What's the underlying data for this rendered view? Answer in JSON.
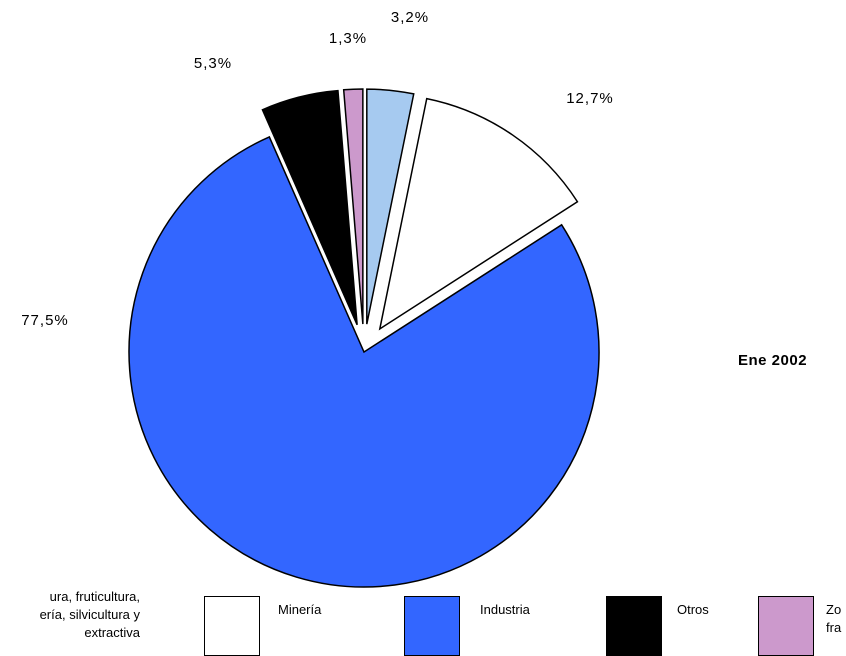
{
  "chart_data": {
    "type": "pie",
    "period": "Ene 2002",
    "slices": [
      {
        "name": "Agricultura, fruticultura, ganadería, silvicultura y pesca extractiva",
        "value": 3.2,
        "label": "3,2%",
        "color": "#a6caf0"
      },
      {
        "name": "Minería",
        "value": 12.7,
        "label": "12,7%",
        "color": "#ffffff"
      },
      {
        "name": "Industria",
        "value": 77.5,
        "label": "77,5%",
        "color": "#3366ff"
      },
      {
        "name": "Otros",
        "value": 5.3,
        "label": "5,3%",
        "color": "#000000"
      },
      {
        "name": "Zona franca",
        "value": 1.3,
        "label": "1,3%",
        "color": "#cc99cc"
      }
    ]
  },
  "legend": {
    "first_lines": [
      "ura, fruticultura,",
      "ería, silvicultura y",
      "extractiva"
    ],
    "minera": "Minería",
    "industria": "Industria",
    "otros": "Otros",
    "zona_lines": [
      "Zo",
      "fra"
    ]
  }
}
